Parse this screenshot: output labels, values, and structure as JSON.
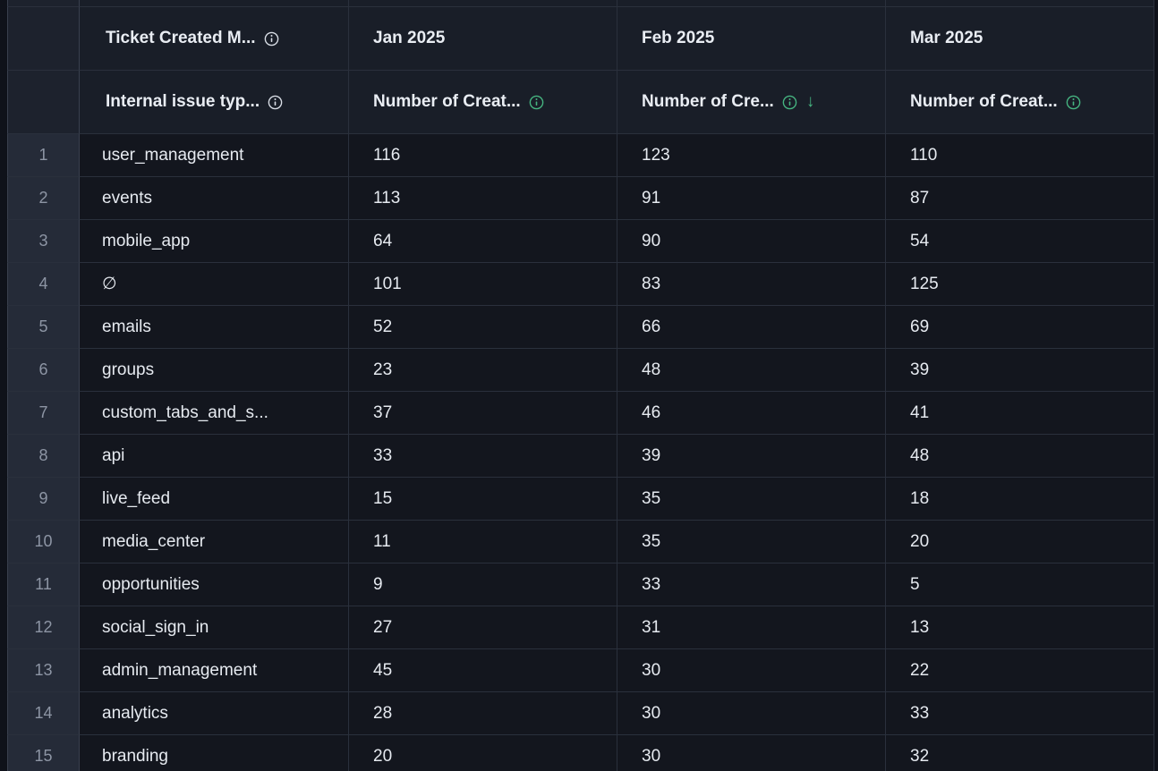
{
  "colors": {
    "accent_green": "#46b581",
    "header_background": "#191e28",
    "cell_background": "#13161e",
    "gutter_background": "#252b38",
    "grid_line": "#2a303c"
  },
  "header_row_1": {
    "dimension": {
      "label": "Ticket Created M...",
      "info_icon": "info-icon"
    },
    "months": [
      {
        "label": "Jan 2025"
      },
      {
        "label": "Feb 2025"
      },
      {
        "label": "Mar 2025"
      }
    ]
  },
  "header_row_2": {
    "dimension": {
      "label": "Internal issue typ...",
      "info_icon": "info-icon"
    },
    "measures": [
      {
        "label": "Number of Creat...",
        "info_icon": "info-icon",
        "sorted": false
      },
      {
        "label": "Number of Cre...",
        "info_icon": "info-icon",
        "sorted": true,
        "sort_direction": "descending",
        "sort_arrow": "↓"
      },
      {
        "label": "Number of Creat...",
        "info_icon": "info-icon",
        "sorted": false
      }
    ]
  },
  "body": {
    "rows": [
      {
        "num": "1",
        "label": "user_management",
        "values": [
          "116",
          "123",
          "110"
        ]
      },
      {
        "num": "2",
        "label": "events",
        "values": [
          "113",
          "91",
          "87"
        ]
      },
      {
        "num": "3",
        "label": "mobile_app",
        "values": [
          "64",
          "90",
          "54"
        ]
      },
      {
        "num": "4",
        "label": "∅",
        "values": [
          "101",
          "83",
          "125"
        ]
      },
      {
        "num": "5",
        "label": "emails",
        "values": [
          "52",
          "66",
          "69"
        ]
      },
      {
        "num": "6",
        "label": "groups",
        "values": [
          "23",
          "48",
          "39"
        ]
      },
      {
        "num": "7",
        "label": "custom_tabs_and_s...",
        "values": [
          "37",
          "46",
          "41"
        ]
      },
      {
        "num": "8",
        "label": "api",
        "values": [
          "33",
          "39",
          "48"
        ]
      },
      {
        "num": "9",
        "label": "live_feed",
        "values": [
          "15",
          "35",
          "18"
        ]
      },
      {
        "num": "10",
        "label": "media_center",
        "values": [
          "11",
          "35",
          "20"
        ]
      },
      {
        "num": "11",
        "label": "opportunities",
        "values": [
          "9",
          "33",
          "5"
        ]
      },
      {
        "num": "12",
        "label": "social_sign_in",
        "values": [
          "27",
          "31",
          "13"
        ]
      },
      {
        "num": "13",
        "label": "admin_management",
        "values": [
          "45",
          "30",
          "22"
        ]
      },
      {
        "num": "14",
        "label": "analytics",
        "values": [
          "28",
          "30",
          "33"
        ]
      },
      {
        "num": "15",
        "label": "branding",
        "values": [
          "20",
          "30",
          "32"
        ]
      }
    ]
  }
}
